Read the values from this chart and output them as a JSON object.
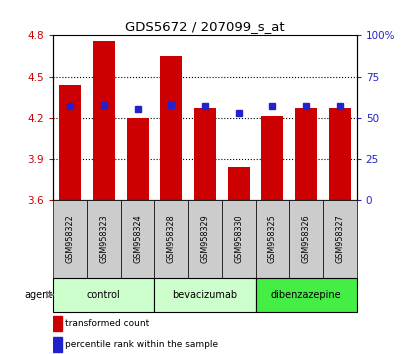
{
  "title": "GDS5672 / 207099_s_at",
  "samples": [
    "GSM958322",
    "GSM958323",
    "GSM958324",
    "GSM958328",
    "GSM958329",
    "GSM958330",
    "GSM958325",
    "GSM958326",
    "GSM958327"
  ],
  "transformed_counts": [
    4.44,
    4.76,
    4.2,
    4.65,
    4.27,
    3.84,
    4.21,
    4.27,
    4.27
  ],
  "percentile_ranks": [
    57,
    58,
    55,
    58,
    57,
    53,
    57,
    57,
    57
  ],
  "bar_color": "#cc0000",
  "dot_color": "#2222cc",
  "ylim_left": [
    3.6,
    4.8
  ],
  "ylim_right": [
    0,
    100
  ],
  "yticks_left": [
    3.6,
    3.9,
    4.2,
    4.5,
    4.8
  ],
  "yticks_right": [
    0,
    25,
    50,
    75,
    100
  ],
  "groups": [
    {
      "label": "control",
      "indices": [
        0,
        1,
        2
      ],
      "color": "#ccffcc"
    },
    {
      "label": "bevacizumab",
      "indices": [
        3,
        4,
        5
      ],
      "color": "#ccffcc"
    },
    {
      "label": "dibenzazepine",
      "indices": [
        6,
        7,
        8
      ],
      "color": "#44ee44"
    }
  ],
  "group_label": "agent",
  "legend_red": "transformed count",
  "legend_blue": "percentile rank within the sample",
  "bar_width": 0.65,
  "sample_box_color": "#cccccc",
  "bar_bottom": 3.6,
  "gridline_values": [
    3.9,
    4.2,
    4.5
  ]
}
